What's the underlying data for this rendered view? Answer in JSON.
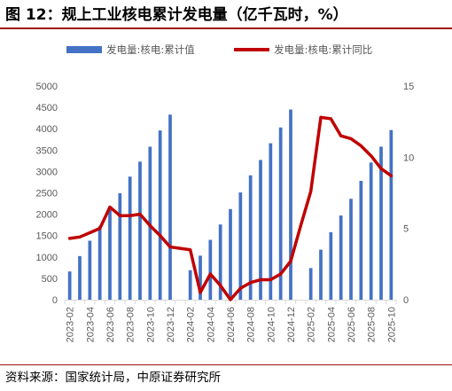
{
  "figure_title": "图 12：规上工业核电累计发电量（亿千瓦时，%）",
  "source_note": "资料来源：国家统计局，中原证券研究所",
  "colors": {
    "bar": "#4472c4",
    "line": "#c00000",
    "axis": "#d9d9d9",
    "text": "#595959",
    "rule": "#9e0b0f"
  },
  "chart_data": {
    "type": "bar",
    "categories": [
      "2023-02",
      "2023-03",
      "2023-04",
      "2023-05",
      "2023-06",
      "2023-07",
      "2023-08",
      "2023-09",
      "2023-10",
      "2023-11",
      "2023-12",
      "2024-01",
      "2024-02",
      "2024-03",
      "2024-04",
      "2024-05",
      "2024-06",
      "2024-07",
      "2024-08",
      "2024-09",
      "2024-10",
      "2024-11",
      "2024-12",
      "2025-01",
      "2025-02",
      "2025-03",
      "2025-04",
      "2025-05",
      "2025-06",
      "2025-07",
      "2025-08",
      "2025-09",
      "2025-10"
    ],
    "x_tick_labels": [
      "2023-02",
      "2023-04",
      "2023-06",
      "2023-08",
      "2023-10",
      "2023-12",
      "2024-02",
      "2024-04",
      "2024-06",
      "2024-08",
      "2024-10",
      "2024-12",
      "2025-02",
      "2025-04",
      "2025-06",
      "2025-08",
      "2025-10"
    ],
    "series": [
      {
        "name": "发电量:核电:累计值",
        "type": "bar",
        "axis": "left",
        "values": [
          660,
          1020,
          1380,
          1720,
          2100,
          2490,
          2880,
          3230,
          3580,
          3960,
          4330,
          null,
          690,
          1030,
          1400,
          1760,
          2120,
          2510,
          2910,
          3270,
          3660,
          4030,
          4450,
          null,
          740,
          1170,
          1580,
          1970,
          2360,
          2780,
          3210,
          3580,
          3970
        ]
      },
      {
        "name": "发电量:核电:累计同比",
        "type": "line",
        "axis": "right",
        "values": [
          4.3,
          4.4,
          4.7,
          5.0,
          6.5,
          5.9,
          5.9,
          6.0,
          5.2,
          4.5,
          3.7,
          3.6,
          3.5,
          0.5,
          1.8,
          1.0,
          0.0,
          0.8,
          1.2,
          1.4,
          1.4,
          1.8,
          2.7,
          5.2,
          7.6,
          12.8,
          12.7,
          11.5,
          11.3,
          10.8,
          10.1,
          9.2,
          8.7
        ]
      }
    ],
    "y_left": {
      "min": 0,
      "max": 5000,
      "ticks": [
        "0",
        "500",
        "1000",
        "1500",
        "2000",
        "2500",
        "3000",
        "3500",
        "4000",
        "4500",
        "5000"
      ]
    },
    "y_right": {
      "min": 0,
      "max": 15,
      "ticks": [
        "0",
        "5",
        "10",
        "15"
      ]
    },
    "legend": {
      "position": "top"
    },
    "grid": false
  }
}
